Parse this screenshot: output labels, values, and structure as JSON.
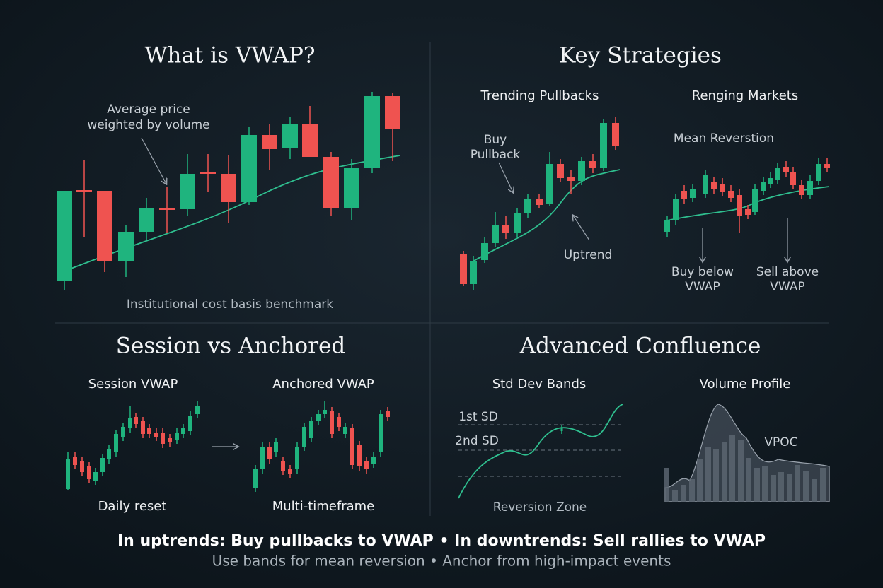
{
  "panels": [
    {
      "title": "What is VWAP?",
      "note": [
        "Average price",
        "weighted by volume"
      ],
      "caption": "Institutional cost basis benchmark"
    },
    {
      "title": "Key Strategies",
      "left": {
        "subtitle": "Trending Pullbacks",
        "notes": [
          [
            "Buy",
            "Pullback"
          ],
          [
            "Uptrend"
          ]
        ]
      },
      "right": {
        "subtitle": "Renging Markets",
        "notes": [
          [
            "Mean Reverstion"
          ],
          [
            "Buy below",
            "VWAP"
          ],
          [
            "Sell above",
            "VWAP"
          ]
        ]
      }
    },
    {
      "title": "Session vs Anchored",
      "left": {
        "subtitle": "Session VWAP",
        "caption": "Daily reset"
      },
      "right": {
        "subtitle": "Anchored VWAP",
        "caption": "Multi-timeframe"
      }
    },
    {
      "title": "Advanced Confluence",
      "left": {
        "subtitle": "Std Dev Bands",
        "labels": [
          "1st SD",
          "2nd SD",
          "Reversion Zone"
        ]
      },
      "right": {
        "subtitle": "Volume Profile",
        "labels": [
          "VPOC"
        ]
      }
    }
  ],
  "footer": {
    "headline": "In uptrends: Buy pullbacks to VWAP • In downtrends: Sell rallies to VWAP",
    "subline": "Use bands for mean reversion • Anchor from high-impact events"
  }
}
